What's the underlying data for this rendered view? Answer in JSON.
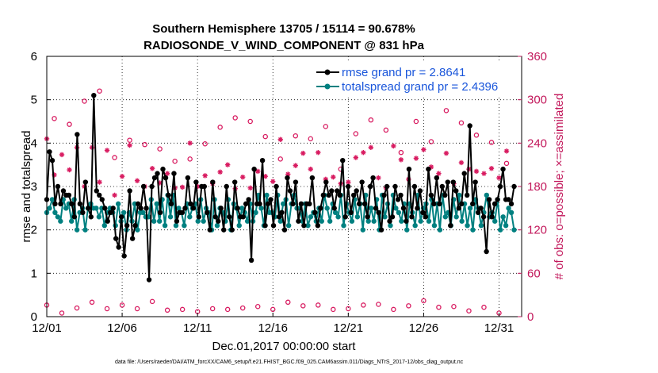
{
  "chart_data": {
    "type": "line",
    "title": "Southern Hemisphere 13705 / 15114 = 90.678%",
    "subtitle": "RADIOSONDE_V_WIND_COMPONENT @ 831 hPa",
    "xlabel": "Dec.01,2017 00:00:00 start",
    "ylabel": "rmse and totalspread",
    "ylabel_right": "# of obs: o=possible; ×=assimilated",
    "footnote": "data file: /Users/raeder/DAI/ATM_forcXX/CAM6_setup/f.e21.FHIST_BGC.f09_025.CAM6assim.011/Diags_NTrS_2017-12/obs_diag_output.nc",
    "xlim": [
      0,
      31.5
    ],
    "ylim": [
      0,
      6
    ],
    "ylim_right": [
      0,
      360
    ],
    "x_ticks": [
      0,
      5,
      10,
      15,
      20,
      25,
      30
    ],
    "x_tick_labels": [
      "12/01",
      "12/06",
      "12/11",
      "12/16",
      "12/21",
      "12/26",
      "12/31"
    ],
    "y_ticks": [
      0,
      1,
      2,
      3,
      4,
      5,
      6
    ],
    "y_tick_labels": [
      "0",
      "1",
      "2",
      "3",
      "4",
      "5",
      "6"
    ],
    "y_right_ticks": [
      0,
      60,
      120,
      180,
      240,
      300,
      360
    ],
    "y_right_tick_labels": [
      "0",
      "60",
      "120",
      "180",
      "240",
      "300",
      "360"
    ],
    "legend_position": "top-right",
    "series": [
      {
        "name": "rmse grand pr = 2.8641",
        "color": "#000000",
        "marker": "circle",
        "values": [
          2.7,
          3.8,
          3.6,
          2.6,
          3.0,
          2.6,
          2.9,
          2.8,
          2.8,
          2.6,
          2.3,
          4.2,
          2.6,
          2.4,
          3.1,
          2.5,
          2.3,
          5.1,
          2.9,
          2.8,
          2.7,
          2.5,
          2.2,
          2.4,
          2.5,
          1.8,
          1.6,
          2.3,
          1.4,
          2.1,
          2.9,
          1.8,
          2.1,
          2.6,
          2.5,
          3.0,
          2.5,
          0.85,
          3.0,
          3.2,
          3.3,
          2.4,
          3.4,
          3.2,
          2.8,
          2.6,
          3.3,
          2.2,
          2.4,
          2.4,
          2.5,
          3.2,
          2.6,
          2.5,
          3.1,
          2.3,
          3.0,
          3.0,
          2.4,
          2.0,
          3.1,
          2.3,
          2.2,
          2.5,
          2.0,
          3.0,
          2.3,
          2.0,
          3.1,
          2.5,
          2.3,
          2.3,
          2.6,
          2.7,
          1.3,
          3.4,
          2.6,
          2.6,
          3.6,
          2.1,
          2.6,
          2.7,
          2.1,
          3.0,
          2.3,
          2.4,
          2.0,
          3.2,
          2.9,
          2.6,
          3.1,
          2.2,
          2.6,
          2.1,
          2.6,
          2.6,
          3.2,
          2.4,
          2.1,
          2.5,
          2.8,
          3.1,
          2.8,
          2.9,
          2.5,
          2.9,
          2.8,
          3.6,
          2.3,
          3.0,
          2.4,
          2.8,
          2.9,
          2.6,
          3.1,
          2.6,
          2.3,
          3.0,
          3.2,
          2.5,
          2.4,
          2.0,
          2.8,
          3.0,
          2.2,
          2.3,
          3.0,
          2.7,
          2.8,
          2.5,
          2.2,
          3.4,
          2.3,
          3.0,
          2.5,
          2.9,
          2.4,
          2.3,
          3.4,
          2.8,
          2.6,
          3.2,
          2.6,
          3.0,
          2.8,
          3.1,
          2.1,
          3.1,
          2.9,
          2.5,
          2.6,
          3.3,
          2.8,
          4.4,
          2.6,
          3.1,
          2.4,
          2.5,
          2.3,
          1.5,
          2.7,
          2.3,
          2.6,
          2.7,
          3.0,
          3.4,
          2.7,
          2.7,
          2.6,
          3.0
        ]
      },
      {
        "name": "totalspread grand pr = 2.4396",
        "color": "#008080",
        "marker": "circle",
        "values": [
          2.4,
          2.5,
          2.7,
          2.4,
          2.3,
          2.2,
          2.7,
          2.5,
          2.6,
          2.2,
          2.7,
          2.0,
          2.4,
          2.5,
          2.0,
          2.5,
          2.6,
          2.5,
          2.5,
          2.3,
          2.5,
          2.1,
          2.4,
          2.5,
          2.4,
          2.1,
          2.6,
          2.2,
          2.4,
          2.0,
          2.4,
          2.2,
          2.6,
          2.0,
          2.4,
          2.4,
          2.3,
          2.3,
          2.7,
          2.2,
          2.6,
          2.2,
          2.7,
          2.1,
          2.8,
          2.3,
          2.8,
          2.1,
          2.5,
          2.4,
          2.1,
          2.6,
          2.3,
          2.5,
          2.6,
          2.2,
          2.7,
          2.2,
          2.5,
          2.4,
          2.0,
          2.7,
          2.1,
          2.5,
          2.4,
          2.2,
          2.7,
          2.0,
          2.6,
          2.5,
          2.1,
          2.5,
          2.4,
          2.2,
          2.6,
          2.2,
          2.4,
          2.8,
          2.5,
          2.1,
          2.8,
          2.4,
          2.4,
          2.3,
          2.8,
          2.2,
          2.6,
          2.7,
          2.1,
          2.6,
          2.8,
          2.5,
          2.5,
          2.2,
          2.6,
          2.1,
          2.3,
          2.4,
          2.2,
          2.5,
          2.2,
          2.8,
          2.5,
          2.2,
          2.6,
          2.4,
          2.3,
          2.8,
          2.1,
          2.6,
          2.4,
          2.2,
          2.7,
          2.3,
          2.6,
          2.0,
          2.8,
          2.2,
          2.5,
          2.2,
          2.7,
          2.0,
          2.8,
          2.3,
          2.6,
          2.1,
          2.8,
          2.5,
          2.4,
          2.2,
          2.6,
          2.0,
          2.6,
          2.4,
          2.1,
          2.8,
          2.2,
          2.5,
          2.6,
          2.2,
          2.7,
          2.1,
          2.6,
          2.0,
          2.8,
          2.3,
          2.4,
          2.1,
          2.7,
          2.3,
          2.8,
          2.2,
          2.6,
          2.1,
          2.5,
          2.0,
          2.7,
          2.5,
          2.1,
          2.4,
          2.8,
          2.3,
          2.4,
          2.2,
          2.7,
          2.0,
          2.3,
          2.1,
          2.5,
          2.4,
          2.0
        ]
      },
      {
        "name": "possible obs (o)",
        "axis": "right",
        "color": "#d81b60",
        "marker": "o",
        "x_step": 1,
        "values": [
          16,
          274,
          5,
          266,
          12,
          298,
          20,
          312,
          11,
          220,
          16,
          244,
          11,
          238,
          21,
          232,
          9,
          215,
          10,
          218,
          7,
          239,
          11,
          262,
          10,
          275,
          12,
          270,
          14,
          249,
          10,
          218,
          20,
          250,
          15,
          246,
          16,
          263,
          10,
          204,
          11,
          253,
          16,
          272,
          17,
          258,
          10,
          227,
          15,
          270,
          22,
          242,
          13,
          285,
          14,
          268,
          8,
          251,
          13,
          241,
          5,
          212
        ]
      },
      {
        "name": "assimilated obs (×)",
        "axis": "right",
        "color": "#d81b60",
        "marker": "asterisk",
        "x_step": 1,
        "values": [
          246,
          196,
          224,
          203,
          234,
          180,
          234,
          186,
          230,
          168,
          194,
          237,
          188,
          180,
          205,
          185,
          198,
          178,
          179,
          240,
          180,
          195,
          184,
          200,
          210,
          177,
          193,
          178,
          201,
          194,
          187,
          245,
          197,
          209,
          226,
          204,
          227,
          190,
          193,
          184,
          186,
          220,
          227,
          234,
          192,
          178,
          236,
          217,
          190,
          219,
          231,
          207,
          198,
          226,
          184,
          213,
          204,
          201,
          198,
          205,
          192,
          229
        ]
      }
    ]
  }
}
